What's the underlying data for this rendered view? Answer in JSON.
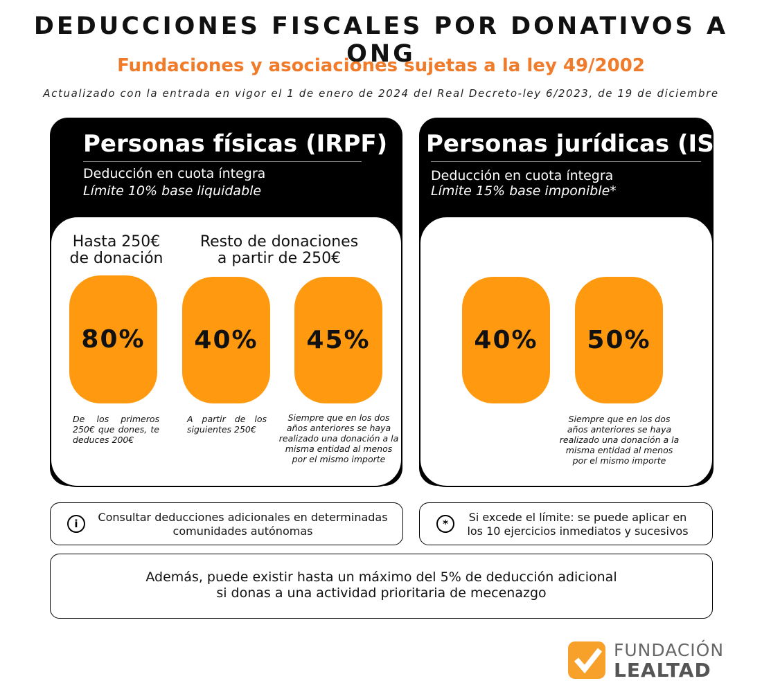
{
  "header": {
    "title": "DEDUCCIONES FISCALES POR DONATIVOS A ONG",
    "subtitle": "Fundaciones y asociaciones sujetas a la ley 49/2002",
    "note": "Actualizado con la entrada en vigor el 1 de enero de 2024 del Real Decreto-ley 6/2023, de 19 de diciembre"
  },
  "cards": [
    {
      "title": "Personas físicas (IRPF)",
      "line1": "Deducción en cuota íntegra",
      "line2": "Límite 10% base liquidable",
      "groups": [
        {
          "lines": [
            "Hasta 250€",
            "de donación"
          ]
        },
        {
          "lines": [
            "Resto de donaciones",
            "a partir de 250€"
          ]
        }
      ],
      "rates": [
        {
          "value": "80%",
          "text": "De los primeros 250€ que dones, te deduces 200€"
        },
        {
          "value": "40%",
          "text": "A partir de los siguientes 250€"
        },
        {
          "value": "45%",
          "text": "Siempre que en los dos años anteriores se haya realizado una donación a la misma entidad al menos por el mismo importe"
        }
      ]
    },
    {
      "title": "Personas jurídicas (IS)",
      "line1": "Deducción en cuota íntegra",
      "line2": "Límite 15% base imponible*",
      "rates": [
        {
          "value": "40%"
        },
        {
          "value": "50%",
          "text": "Siempre que en los dos años anteriores se haya realizado una donación a la misma entidad al menos por el mismo importe"
        }
      ]
    }
  ],
  "notes": [
    {
      "icon": "i",
      "text": "Consultar deducciones adicionales en determinadas comunidades autónomas"
    },
    {
      "icon": "*",
      "text": "Si excede el límite: se puede aplicar en los 10 ejercicios inmediatos y sucesivos"
    }
  ],
  "footer": {
    "lines": [
      "Además, puede existir hasta un máximo del 5% de deducción adicional",
      "si donas a una actividad prioritaria de mecenazgo"
    ]
  },
  "logo": {
    "line1": "FUNDACIÓN",
    "line2": "LEALTAD"
  }
}
